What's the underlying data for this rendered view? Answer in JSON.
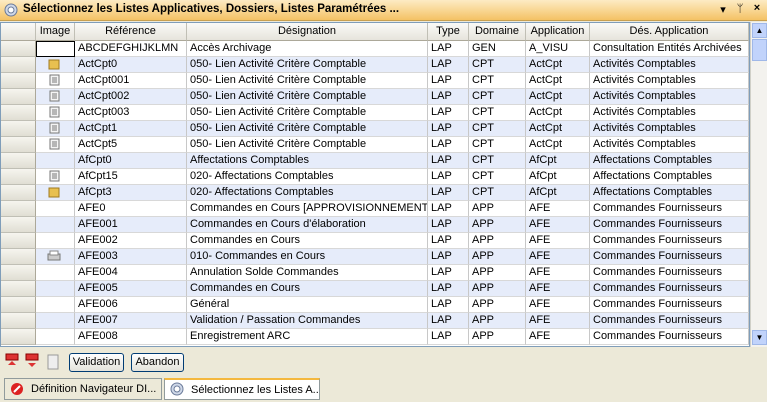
{
  "window": {
    "title": "Sélectionnez les Listes Applicatives, Dossiers, Listes Paramétrées ...",
    "controls": [
      "▾",
      "ᛘ",
      "×"
    ]
  },
  "table": {
    "columns": [
      "Image",
      "Référence",
      "Désignation",
      "Type",
      "Domaine",
      "Application",
      "Dés. Application"
    ],
    "rows": [
      [
        "ABCDEFGHIJKLMN",
        "Accès Archivage",
        "LAP",
        "GEN",
        "A_VISU",
        "Consultation Entités Archivées"
      ],
      [
        "ActCpt0",
        "050- Lien Activité Critère Comptable",
        "LAP",
        "CPT",
        "ActCpt",
        "Activités Comptables"
      ],
      [
        "ActCpt001",
        "050- Lien Activité Critère Comptable",
        "LAP",
        "CPT",
        "ActCpt",
        "Activités Comptables"
      ],
      [
        "ActCpt002",
        "050- Lien Activité Critère Comptable",
        "LAP",
        "CPT",
        "ActCpt",
        "Activités Comptables"
      ],
      [
        "ActCpt003",
        "050- Lien Activité Critère Comptable",
        "LAP",
        "CPT",
        "ActCpt",
        "Activités Comptables"
      ],
      [
        "ActCpt1",
        "050- Lien Activité Critère Comptable",
        "LAP",
        "CPT",
        "ActCpt",
        "Activités Comptables"
      ],
      [
        "ActCpt5",
        "050- Lien Activité Critère Comptable",
        "LAP",
        "CPT",
        "ActCpt",
        "Activités Comptables"
      ],
      [
        "AfCpt0",
        "Affectations Comptables",
        "LAP",
        "CPT",
        "AfCpt",
        "Affectations Comptables"
      ],
      [
        "AfCpt15",
        "020- Affectations Comptables",
        "LAP",
        "CPT",
        "AfCpt",
        "Affectations Comptables"
      ],
      [
        "AfCpt3",
        "020- Affectations Comptables",
        "LAP",
        "CPT",
        "AfCpt",
        "Affectations Comptables"
      ],
      [
        "AFE0",
        "Commandes en Cours [APPROVISIONNEMENT]",
        "LAP",
        "APP",
        "AFE",
        "Commandes Fournisseurs"
      ],
      [
        "AFE001",
        "Commandes en Cours d'élaboration",
        "LAP",
        "APP",
        "AFE",
        "Commandes Fournisseurs"
      ],
      [
        "AFE002",
        "Commandes en Cours",
        "LAP",
        "APP",
        "AFE",
        "Commandes Fournisseurs"
      ],
      [
        "AFE003",
        "010- Commandes en Cours",
        "LAP",
        "APP",
        "AFE",
        "Commandes Fournisseurs"
      ],
      [
        "AFE004",
        "Annulation Solde Commandes",
        "LAP",
        "APP",
        "AFE",
        "Commandes Fournisseurs"
      ],
      [
        "AFE005",
        "Commandes en Cours",
        "LAP",
        "APP",
        "AFE",
        "Commandes Fournisseurs"
      ],
      [
        "AFE006",
        "Général",
        "LAP",
        "APP",
        "AFE",
        "Commandes Fournisseurs"
      ],
      [
        "AFE007",
        "Validation / Passation Commandes",
        "LAP",
        "APP",
        "AFE",
        "Commandes Fournisseurs"
      ],
      [
        "AFE008",
        "Enregistrement ARC",
        "LAP",
        "APP",
        "AFE",
        "Commandes Fournisseurs"
      ]
    ]
  },
  "toolbar": {
    "buttons": [
      "Validation",
      "Abandon"
    ]
  },
  "tabs": [
    "Définition Navigateur DI...",
    "Sélectionnez les Listes A..."
  ]
}
